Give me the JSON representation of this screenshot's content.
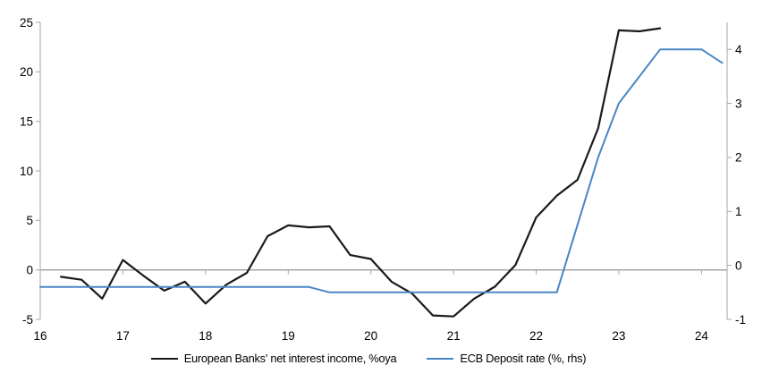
{
  "chart_data": {
    "type": "line",
    "title": "",
    "axis_color": "#a6a6a6",
    "background": "#ffffff",
    "grid": false,
    "zero_line": true,
    "legend_position": "bottom",
    "x_axis": {
      "ticks": [
        16,
        17,
        18,
        19,
        20,
        21,
        22,
        23,
        24
      ],
      "range": [
        16,
        24.31
      ]
    },
    "left_axis": {
      "ticks": [
        25,
        20,
        15,
        10,
        5,
        0,
        -5
      ],
      "range": [
        -5,
        25
      ]
    },
    "right_axis": {
      "ticks": [
        4,
        3,
        2,
        1,
        0,
        -1
      ],
      "range": [
        -1,
        4.5
      ]
    },
    "series": [
      {
        "name": "European Banks' net interest income, %oya",
        "axis": "left",
        "color": "#1a1a1a",
        "width": 2.2,
        "x": [
          16.25,
          16.5,
          16.75,
          17,
          17.25,
          17.5,
          17.75,
          18,
          18.25,
          18.5,
          18.75,
          19,
          19.25,
          19.5,
          19.75,
          20,
          20.25,
          20.5,
          20.75,
          21,
          21.25,
          21.5,
          21.75,
          22,
          22.25,
          22.5,
          22.75,
          23,
          23.25,
          23.5
        ],
        "values": [
          -0.7,
          -1.0,
          -2.9,
          1.0,
          -0.6,
          -2.1,
          -1.2,
          -3.4,
          -1.5,
          -0.3,
          3.4,
          4.5,
          4.3,
          4.4,
          1.5,
          1.1,
          -1.2,
          -2.4,
          -4.6,
          -4.7,
          -2.9,
          -1.7,
          0.5,
          5.3,
          7.5,
          9.1,
          14.3,
          24.2,
          24.1,
          24.4
        ]
      },
      {
        "name": "ECB Deposit rate (%, rhs)",
        "axis": "right",
        "color": "#4a86c6",
        "width": 2,
        "x": [
          16,
          16.25,
          16.5,
          16.75,
          17,
          17.25,
          17.5,
          17.75,
          18,
          18.25,
          18.5,
          18.75,
          19,
          19.25,
          19.5,
          19.75,
          20,
          20.25,
          20.5,
          20.75,
          21,
          21.25,
          21.5,
          21.75,
          22,
          22.25,
          22.5,
          22.75,
          23,
          23.25,
          23.5,
          23.75,
          24,
          24.25
        ],
        "values": [
          -0.4,
          -0.4,
          -0.4,
          -0.4,
          -0.4,
          -0.4,
          -0.4,
          -0.4,
          -0.4,
          -0.4,
          -0.4,
          -0.4,
          -0.4,
          -0.4,
          -0.5,
          -0.5,
          -0.5,
          -0.5,
          -0.5,
          -0.5,
          -0.5,
          -0.5,
          -0.5,
          -0.5,
          -0.5,
          -0.5,
          0.75,
          2.0,
          3.0,
          3.5,
          4.0,
          4.0,
          4.0,
          3.75
        ]
      }
    ]
  },
  "legend": {
    "series1_label": "European Banks' net interest income, %oya",
    "series2_label": "ECB Deposit rate (%, rhs)"
  }
}
